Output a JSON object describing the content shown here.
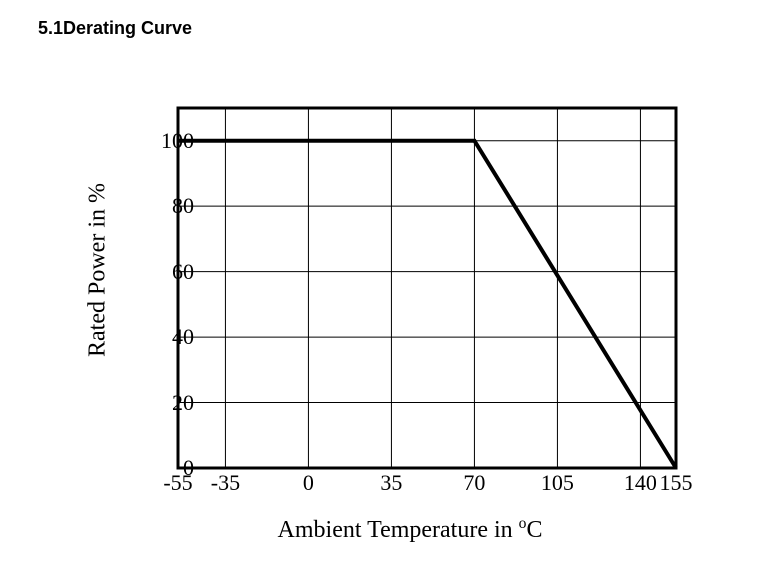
{
  "heading": "5.1Derating Curve",
  "chart": {
    "type": "line",
    "x_label_prefix": "Ambient Temperature in ",
    "x_label_unit_sup": "o",
    "x_label_unit": "C",
    "y_label": "Rated Power in %",
    "label_fontsize": 24,
    "tick_fontsize": 22,
    "xlim": [
      -55,
      155
    ],
    "ylim": [
      0,
      110
    ],
    "y_ticks": [
      0,
      20,
      40,
      60,
      80,
      100
    ],
    "x_ticks": [
      -55,
      -35,
      0,
      35,
      70,
      105,
      140,
      155
    ],
    "x_gridlines": [
      -55,
      -35,
      0,
      35,
      70,
      105,
      140,
      155
    ],
    "y_gridlines": [
      0,
      20,
      40,
      60,
      80,
      100,
      110
    ],
    "grid_color": "#000000",
    "grid_width": 1,
    "border_color": "#000000",
    "border_width": 3,
    "background_color": "#ffffff",
    "text_color": "#000000",
    "series": {
      "points": [
        [
          -55,
          100
        ],
        [
          70,
          100
        ],
        [
          155,
          0
        ]
      ],
      "color": "#000000",
      "line_width": 4
    }
  }
}
